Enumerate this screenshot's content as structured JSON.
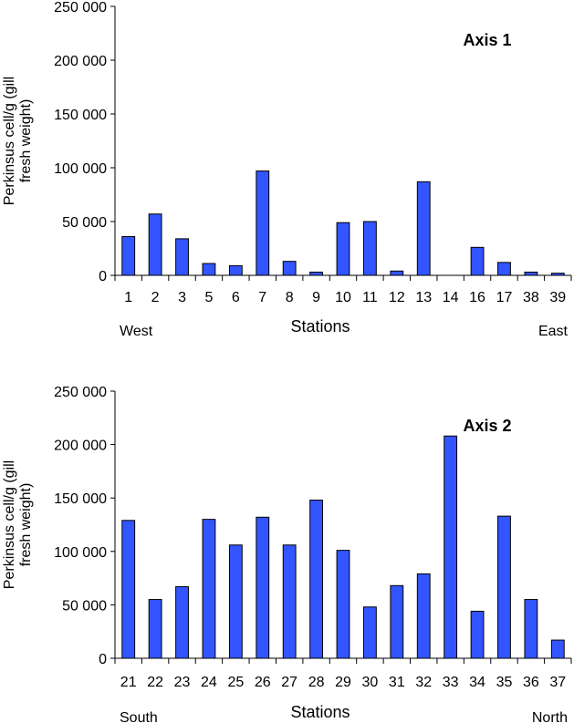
{
  "chart_data": [
    {
      "type": "bar",
      "title": "Axis 1",
      "xlabel": "Stations",
      "ylabel": [
        "Perkinsus cell/g (gill",
        "fresh weight)"
      ],
      "ylim": [
        0,
        250000
      ],
      "yticks": [
        "0",
        "50 000",
        "100 000",
        "150 000",
        "200 000",
        "250 000"
      ],
      "categories": [
        "1",
        "2",
        "3",
        "5",
        "6",
        "7",
        "8",
        "9",
        "10",
        "11",
        "12",
        "13",
        "14",
        "16",
        "17",
        "38",
        "39"
      ],
      "values": [
        36000,
        57000,
        34000,
        11000,
        9000,
        97000,
        13000,
        3000,
        49000,
        50000,
        4000,
        87000,
        0,
        26000,
        12000,
        3000,
        2000
      ],
      "annotations": {
        "left": "West",
        "right": "East"
      },
      "bar_color": "#3355FF",
      "grid": false
    },
    {
      "type": "bar",
      "title": "Axis 2",
      "xlabel": "Stations",
      "ylabel": [
        "Perkinsus cell/g (gill",
        "fresh weight)"
      ],
      "ylim": [
        0,
        250000
      ],
      "yticks": [
        "0",
        "50 000",
        "100 000",
        "150 000",
        "200 000",
        "250 000"
      ],
      "categories": [
        "21",
        "22",
        "23",
        "24",
        "25",
        "26",
        "27",
        "28",
        "29",
        "30",
        "31",
        "32",
        "33",
        "34",
        "35",
        "36",
        "37"
      ],
      "values": [
        129000,
        55000,
        67000,
        130000,
        106000,
        132000,
        106000,
        148000,
        101000,
        48000,
        68000,
        79000,
        208000,
        44000,
        133000,
        55000,
        17000
      ],
      "annotations": {
        "left": "South",
        "right": "North"
      },
      "bar_color": "#3355FF",
      "grid": false
    }
  ]
}
